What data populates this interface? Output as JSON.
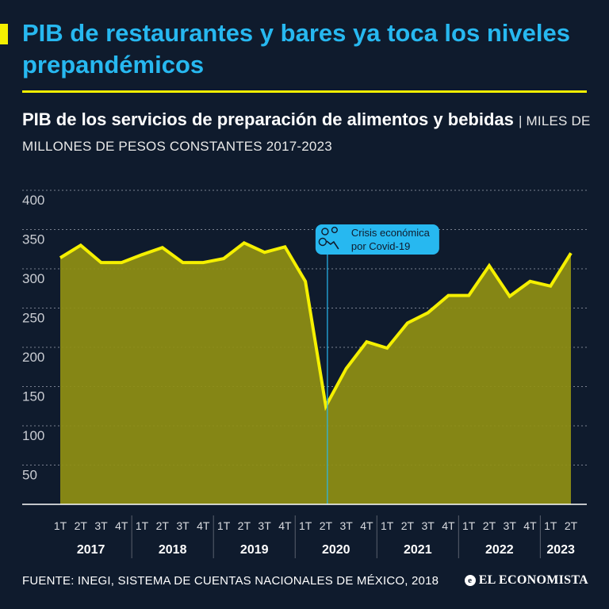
{
  "headline": "PIB de restaurantes y bares ya toca los niveles prepandémicos",
  "subtitle": {
    "title": "PIB de los servicios de preparación de alimentos y bebidas",
    "units": "| MILES DE MILLONES DE PESOS CONSTANTES 2017-2023"
  },
  "footer": {
    "source": "FUENTE: INEGI, SISTEMA DE CUENTAS NACIONALES DE MÉXICO, 2018",
    "brand_symbol": "e",
    "brand": "EL ECONOMISTA"
  },
  "colors": {
    "background": "#0f1b2d",
    "headline": "#27b8f0",
    "accent": "#f5f000",
    "line": "#f5f000",
    "area": "#8f8f14",
    "grid": "#7a8190",
    "annotation": "#27b8f0"
  },
  "chart_data": {
    "type": "area",
    "title": "PIB de los servicios de preparación de alimentos y bebidas",
    "ylabel": "MILES DE MILLONES DE PESOS CONSTANTES 2017-2023",
    "ylim": [
      0,
      400
    ],
    "yticks": [
      50,
      100,
      150,
      200,
      250,
      300,
      350,
      400
    ],
    "grid": true,
    "quarters": [
      "1T",
      "2T",
      "3T",
      "4T",
      "1T",
      "2T",
      "3T",
      "4T",
      "1T",
      "2T",
      "3T",
      "4T",
      "1T",
      "2T",
      "3T",
      "4T",
      "1T",
      "2T",
      "3T",
      "4T",
      "1T",
      "2T",
      "3T",
      "4T",
      "1T",
      "2T"
    ],
    "years": [
      {
        "label": "2017",
        "quarters": 4
      },
      {
        "label": "2018",
        "quarters": 4
      },
      {
        "label": "2019",
        "quarters": 4
      },
      {
        "label": "2020",
        "quarters": 4
      },
      {
        "label": "2021",
        "quarters": 4
      },
      {
        "label": "2022",
        "quarters": 4
      },
      {
        "label": "2023",
        "quarters": 2
      }
    ],
    "series": [
      {
        "name": "PIB",
        "values": [
          314,
          330,
          308,
          308,
          318,
          327,
          308,
          308,
          313,
          333,
          321,
          328,
          284,
          125,
          173,
          207,
          199,
          231,
          244,
          266,
          266,
          304,
          265,
          284,
          278,
          320
        ]
      }
    ],
    "annotation": {
      "text_line1": "Crisis económica",
      "text_line2": "por Covid-19",
      "index": 13
    }
  }
}
